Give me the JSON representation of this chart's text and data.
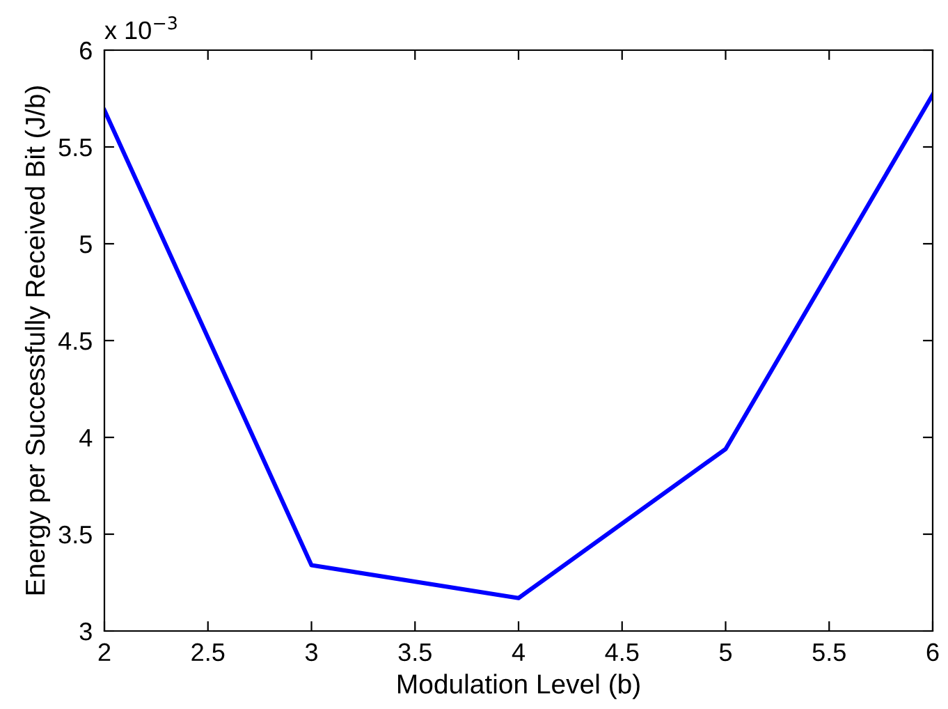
{
  "chart_data": {
    "type": "line",
    "xlabel": "Modulation Level (b)",
    "ylabel": "Energy per Successfully Received Bit (J/b)",
    "x": [
      2,
      3,
      4,
      5,
      6
    ],
    "series": [
      {
        "color": "#0000ff",
        "values": [
          5.69,
          3.34,
          3.17,
          3.94,
          5.77
        ]
      }
    ],
    "xlim": [
      2,
      6
    ],
    "xticks": [
      2,
      2.5,
      3,
      3.5,
      4,
      4.5,
      5,
      5.5,
      6
    ],
    "ylim": [
      3,
      6
    ],
    "yticks": [
      3,
      3.5,
      4,
      4.5,
      5,
      5.5,
      6
    ],
    "annotations": [
      "x 10$^{−3}$"
    ],
    "marker": "none",
    "line_style": "solid"
  }
}
